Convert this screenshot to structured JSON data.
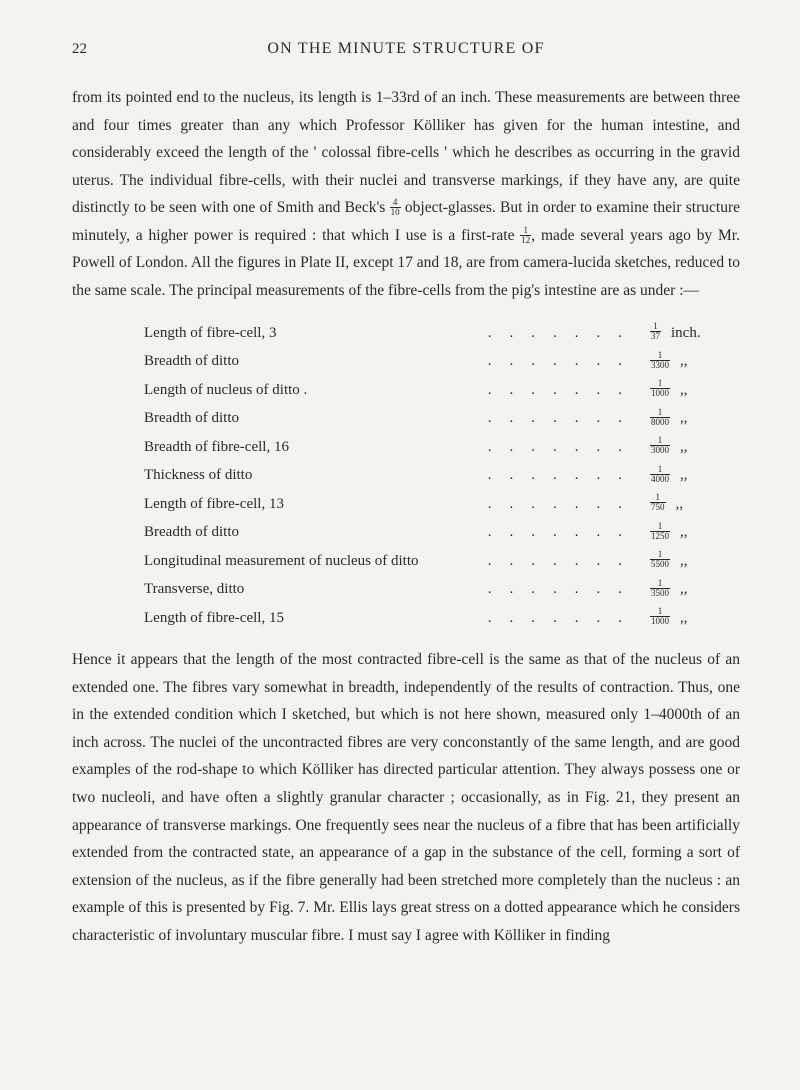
{
  "page": {
    "number": "22",
    "title": "ON THE MINUTE STRUCTURE OF"
  },
  "para1_parts": {
    "a": "from its pointed end to the nucleus, its length is 1–33rd of an inch. These measurements are between three and four times greater than any which Professor Kölliker has given for the human intestine, and considerably exceed the length of the ' colossal fibre-cells ' which he describes as occurring in the gravid uterus. The individual fibre-cells, with their nuclei and transverse markings, if they have any, are quite distinctly to be seen with one of Smith and Beck's ",
    "b": " object-glasses. But in order to examine their structure minutely, a higher power is required : that which I use is a first-rate ",
    "c": ", made several years ago by Mr. Powell of London. All the figures in Plate II, except 17 and 18, are from camera-lucida sketches, reduced to the same scale. The principal measurements of the fibre-cells from the pig's intestine are as under :—"
  },
  "inline_fracs": {
    "f1": {
      "num": "4",
      "den": "10"
    },
    "f2": {
      "num": "1",
      "den": "12"
    }
  },
  "measurements": [
    {
      "label": "Length of fibre-cell, 3",
      "num": "1",
      "den": "37",
      "unit": "inch."
    },
    {
      "label": "Breadth of ditto",
      "num": "1",
      "den": "3300",
      "unit": ",,"
    },
    {
      "label": "Length of nucleus of ditto .",
      "num": "1",
      "den": "1000",
      "unit": ",,"
    },
    {
      "label": "Breadth of ditto",
      "num": "1",
      "den": "8000",
      "unit": ",,"
    },
    {
      "label": "Breadth of fibre-cell, 16",
      "num": "1",
      "den": "3000",
      "unit": ",,"
    },
    {
      "label": "Thickness of ditto",
      "num": "1",
      "den": "4000",
      "unit": ",,"
    },
    {
      "label": "Length of fibre-cell, 13",
      "num": "1",
      "den": "750",
      "unit": ",,"
    },
    {
      "label": "Breadth of ditto",
      "num": "1",
      "den": "1250",
      "unit": ",,"
    },
    {
      "label": "Longitudinal measurement of nucleus of ditto",
      "num": "1",
      "den": "5500",
      "unit": ",,"
    },
    {
      "label": "Transverse, ditto",
      "num": "1",
      "den": "3500",
      "unit": ",,"
    },
    {
      "label": "Length of fibre-cell, 15",
      "num": "1",
      "den": "1000",
      "unit": ",,"
    }
  ],
  "para2": "Hence it appears that the length of the most contracted fibre-cell is the same as that of the nucleus of an extended one. The fibres vary somewhat in breadth, independently of the results of contraction. Thus, one in the ex­tended condition which I sketched, but which is not here shown, measured only 1–4000th of an inch across. The nuclei of the uncontracted fibres are very con­constantly of the same length, and are good examples of the rod-shape to which Kölliker has directed particular attention. They always possess one or two nucleoli, and have often a slightly granular character ; occasionally, as in Fig. 21, they present an appearance of transverse markings. One frequently sees near the nucleus of a fibre that has been artificially extended from the contracted state, an appearance of a gap in the substance of the cell, forming a sort of extension of the nucleus, as if the fibre generally had been stretched more completely than the nucleus : an example of this is presented by Fig. 7. Mr. Ellis lays great stress on a dotted appearance which he considers character­istic of involuntary muscular fibre. I must say I agree with Kölliker in finding",
  "dotfill": "......."
}
